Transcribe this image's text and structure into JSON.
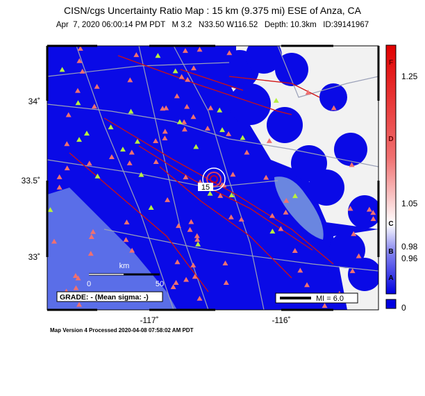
{
  "header": {
    "title": "CISN/cgs Uncertainty Ratio Map : 15 km (9.375 mi) ESE of Anza, CA",
    "subtitle": "Apr  7, 2020 06:00:14 PM PDT   M 3.2   N33.50 W116.52   Depth: 10.3km   ID:39141967"
  },
  "map": {
    "lat_labels": [
      "34˚",
      "33.5˚",
      "33˚"
    ],
    "lon_labels": [
      "-117˚",
      "-116˚"
    ],
    "scale_bar": {
      "unit": "km",
      "start": "0",
      "end": "50"
    },
    "grade": "GRADE: - (Mean sigma: -)",
    "intensity_legend": "MI = 6.0",
    "epicenter_label": "15"
  },
  "colorbar": {
    "grades": [
      "F",
      "D",
      "C",
      "B",
      "A"
    ],
    "ticks": [
      "1.25",
      "1.05",
      "0.98",
      "0.96",
      "0"
    ]
  },
  "footer": "Map Version 4 Processed 2020-04-08 07:58:02 AM PDT"
}
